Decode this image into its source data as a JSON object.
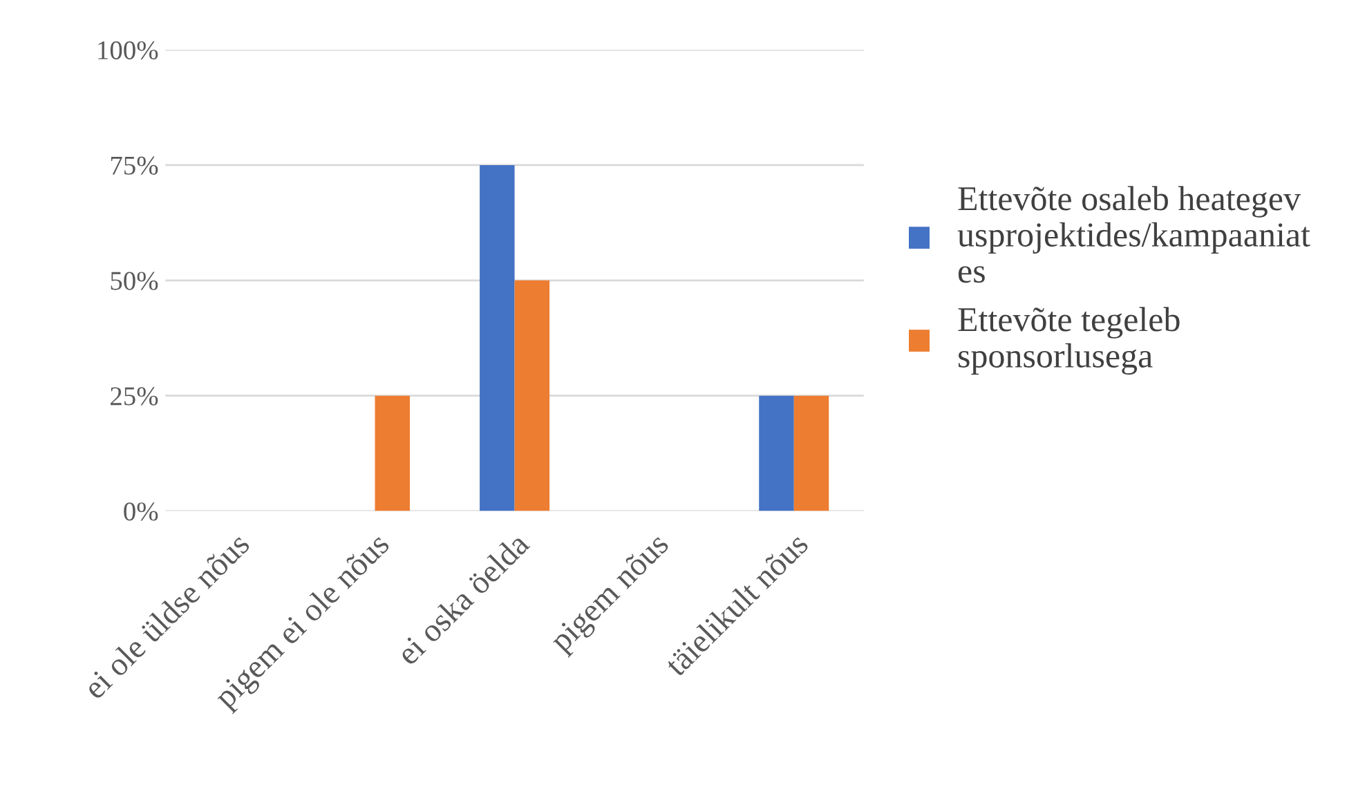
{
  "chart_data": {
    "type": "bar",
    "categories": [
      "ei ole üldse nõus",
      "pigem ei ole nõus",
      "ei oska öelda",
      "pigem nõus",
      "täielikult nõus"
    ],
    "series": [
      {
        "name": "Ettevõte osaleb heategevusprojektides/kampaaniates",
        "color": "#4472c4",
        "values": [
          0,
          0,
          75,
          0,
          25
        ]
      },
      {
        "name": "Ettevõte tegeleb sponsorlusega",
        "color": "#ed7d31",
        "values": [
          0,
          25,
          50,
          0,
          25
        ]
      }
    ],
    "ylim": [
      0,
      100
    ],
    "yticks": [
      {
        "value": 0,
        "label": "0%"
      },
      {
        "value": 25,
        "label": "25%"
      },
      {
        "value": 50,
        "label": "50%"
      },
      {
        "value": 75,
        "label": "75%"
      },
      {
        "value": 100,
        "label": "100%"
      }
    ],
    "grid": "y",
    "legend": "right"
  }
}
